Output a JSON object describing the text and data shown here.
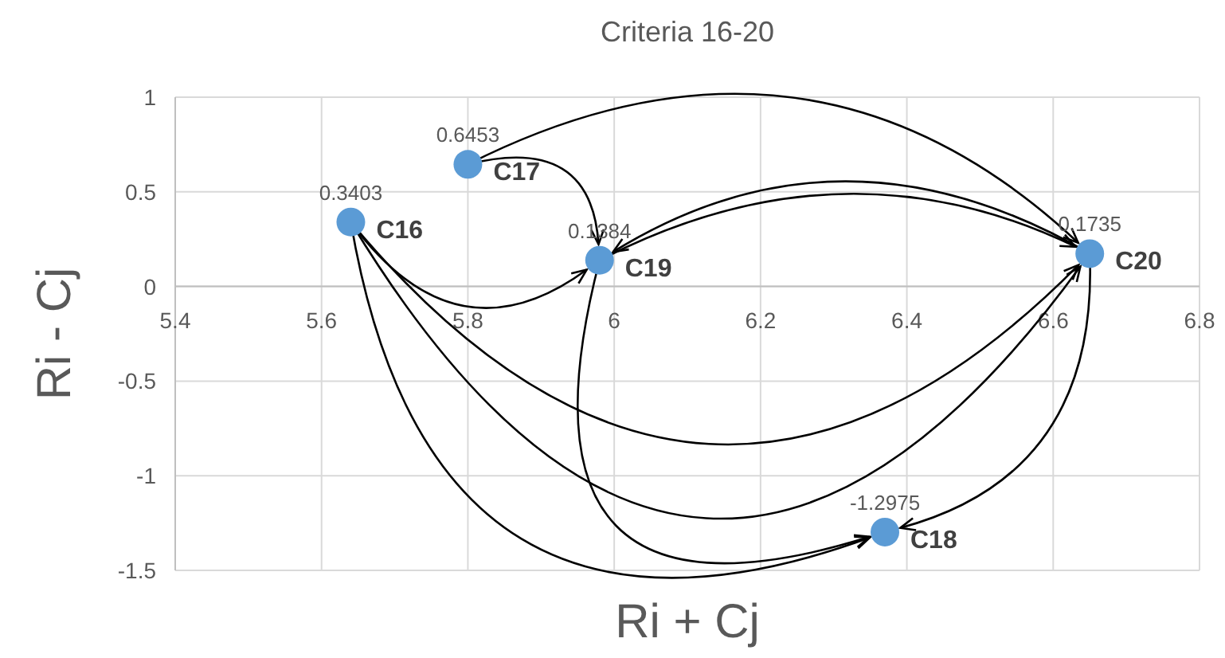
{
  "chart_data": {
    "type": "scatter",
    "title": "Criteria 16-20",
    "xlabel": "Ri + Cj",
    "ylabel": "Ri - Cj",
    "x": [
      5.64,
      5.8,
      6.37,
      5.98,
      6.65
    ],
    "values": [
      0.3403,
      0.6453,
      -1.2975,
      0.1384,
      0.1735
    ],
    "color": "#5b9bd5",
    "marker": "circle",
    "data_labels": true,
    "annotations": [
      {
        "text": "C16",
        "x": 5.64,
        "y": 0.3403
      },
      {
        "text": "C17",
        "x": 5.8,
        "y": 0.6453
      },
      {
        "text": "C18",
        "x": 6.37,
        "y": -1.2975
      },
      {
        "text": "C19",
        "x": 5.98,
        "y": 0.1384
      },
      {
        "text": "C20",
        "x": 6.65,
        "y": 0.1735
      }
    ],
    "xlim": [
      5.4,
      6.8
    ],
    "xticks": [
      5.4,
      5.6,
      5.8,
      6,
      6.2,
      6.4,
      6.6,
      6.8
    ],
    "ylim": [
      -1.5,
      1
    ],
    "yticks": [
      -1.5,
      -1,
      -0.5,
      0,
      0.5,
      1
    ],
    "grid": true
  }
}
